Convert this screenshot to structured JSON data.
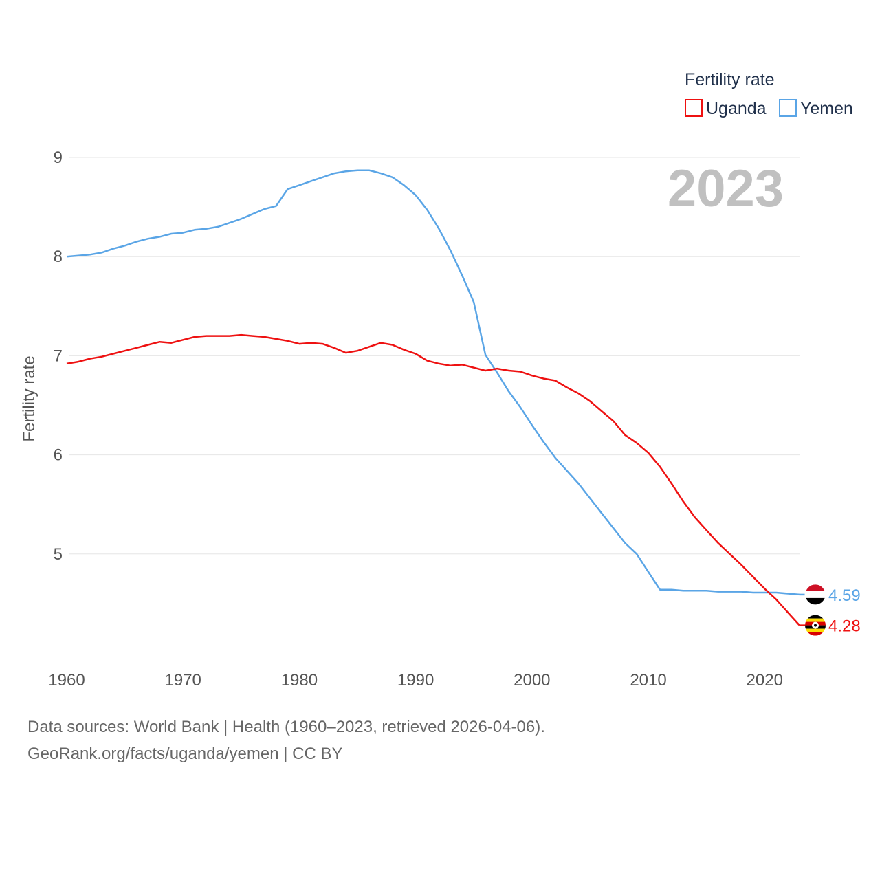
{
  "colors": {
    "uganda": "#ee1111",
    "yemen": "#5aa5e6",
    "grid": "#e6e6e6",
    "text": "#555555"
  },
  "legend": {
    "title": "Fertility rate",
    "items": [
      {
        "label": "Uganda",
        "color": "#ee1111"
      },
      {
        "label": "Yemen",
        "color": "#5aa5e6"
      }
    ]
  },
  "year_label": "2023",
  "footer": {
    "source": "Data sources: World Bank | Health (1960–2023, retrieved 2026-04-06).",
    "credit": "GeoRank.org/facts/uganda/yemen | CC BY"
  },
  "chart_data": {
    "type": "line",
    "title": "Fertility rate",
    "xlabel": "",
    "ylabel": "Fertility rate",
    "xlim": [
      1960,
      2023
    ],
    "ylim": [
      4.0,
      9.0
    ],
    "x_ticks": [
      1960,
      1970,
      1980,
      1990,
      2000,
      2010,
      2020
    ],
    "y_ticks": [
      5,
      6,
      7,
      8,
      9
    ],
    "grid": true,
    "legend_position": "top-right",
    "x": [
      1960,
      1961,
      1962,
      1963,
      1964,
      1965,
      1966,
      1967,
      1968,
      1969,
      1970,
      1971,
      1972,
      1973,
      1974,
      1975,
      1976,
      1977,
      1978,
      1979,
      1980,
      1981,
      1982,
      1983,
      1984,
      1985,
      1986,
      1987,
      1988,
      1989,
      1990,
      1991,
      1992,
      1993,
      1994,
      1995,
      1996,
      1997,
      1998,
      1999,
      2000,
      2001,
      2002,
      2003,
      2004,
      2005,
      2006,
      2007,
      2008,
      2009,
      2010,
      2011,
      2012,
      2013,
      2014,
      2015,
      2016,
      2017,
      2018,
      2019,
      2020,
      2021,
      2022,
      2023
    ],
    "series": [
      {
        "name": "Uganda",
        "color": "#ee1111",
        "end_label": "4.28",
        "flag_icon": "uganda-flag-icon",
        "values": [
          6.92,
          6.94,
          6.97,
          6.99,
          7.02,
          7.05,
          7.08,
          7.11,
          7.14,
          7.13,
          7.16,
          7.19,
          7.2,
          7.2,
          7.2,
          7.21,
          7.2,
          7.19,
          7.17,
          7.15,
          7.12,
          7.13,
          7.12,
          7.08,
          7.03,
          7.05,
          7.09,
          7.13,
          7.11,
          7.06,
          7.02,
          6.95,
          6.92,
          6.9,
          6.91,
          6.88,
          6.85,
          6.87,
          6.85,
          6.84,
          6.8,
          6.77,
          6.75,
          6.68,
          6.62,
          6.54,
          6.44,
          6.34,
          6.2,
          6.12,
          6.02,
          5.88,
          5.71,
          5.53,
          5.37,
          5.24,
          5.11,
          5.0,
          4.89,
          4.77,
          4.65,
          4.54,
          4.41,
          4.28
        ]
      },
      {
        "name": "Yemen",
        "color": "#5aa5e6",
        "end_label": "4.59",
        "flag_icon": "yemen-flag-icon",
        "values": [
          8.0,
          8.01,
          8.02,
          8.04,
          8.08,
          8.11,
          8.15,
          8.18,
          8.2,
          8.23,
          8.24,
          8.27,
          8.28,
          8.3,
          8.34,
          8.38,
          8.43,
          8.48,
          8.51,
          8.68,
          8.72,
          8.76,
          8.8,
          8.84,
          8.86,
          8.87,
          8.87,
          8.84,
          8.8,
          8.72,
          8.62,
          8.47,
          8.28,
          8.06,
          7.81,
          7.54,
          7.01,
          6.83,
          6.64,
          6.48,
          6.3,
          6.13,
          5.97,
          5.84,
          5.71,
          5.56,
          5.41,
          5.26,
          5.11,
          5.0,
          4.82,
          4.64,
          4.64,
          4.63,
          4.63,
          4.63,
          4.62,
          4.62,
          4.62,
          4.61,
          4.61,
          4.61,
          4.6,
          4.59
        ]
      }
    ]
  }
}
